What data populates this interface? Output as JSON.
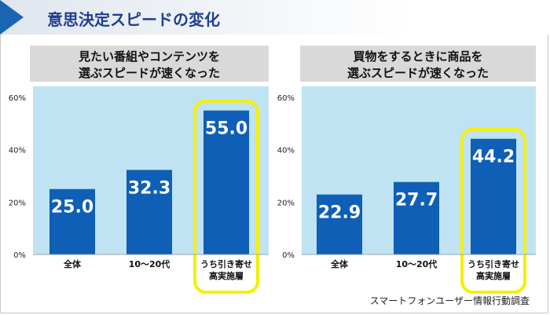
{
  "header": {
    "title": "意思決定スピードの変化"
  },
  "source": "スマートフォンユーザー情報行動調査",
  "colors": {
    "bar": "#0e5fb5",
    "plot_bg": "#bfe3f3",
    "subtitle_bg": "#d9d9d9",
    "highlight": "#f5f000",
    "title_accent": "#1a64b4"
  },
  "chart_data": [
    {
      "type": "bar",
      "title_lines": [
        "見たい番組やコンテンツを",
        "選ぶスピードが速くなった"
      ],
      "categories": [
        [
          "全体"
        ],
        [
          "10～20代"
        ],
        [
          "うち引き寄せ",
          "高実施層"
        ]
      ],
      "values": [
        25.0,
        32.3,
        55.0
      ],
      "value_labels": [
        "25.0",
        "32.3",
        "55.0"
      ],
      "yticks": [
        "0%",
        "20%",
        "40%",
        "60%"
      ],
      "ylim": [
        0,
        60
      ],
      "highlight_index": 2,
      "grid": false
    },
    {
      "type": "bar",
      "title_lines": [
        "買物をするときに商品を",
        "選ぶスピードが速くなった"
      ],
      "categories": [
        [
          "全体"
        ],
        [
          "10～20代"
        ],
        [
          "うち引き寄せ",
          "高実施層"
        ]
      ],
      "values": [
        22.9,
        27.7,
        44.2
      ],
      "value_labels": [
        "22.9",
        "27.7",
        "44.2"
      ],
      "yticks": [
        "0%",
        "20%",
        "40%",
        "60%"
      ],
      "ylim": [
        0,
        60
      ],
      "highlight_index": 2,
      "grid": false
    }
  ]
}
